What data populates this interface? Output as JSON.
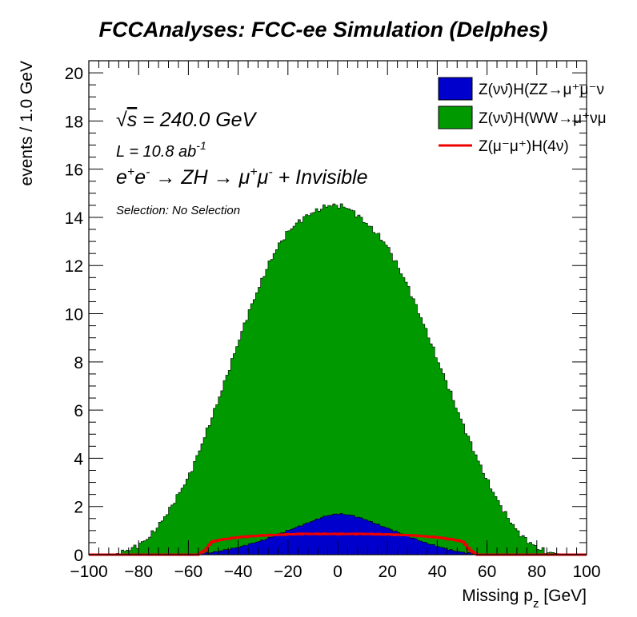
{
  "chart_data": {
    "type": "histogram",
    "title": "FCCAnalyses: FCC-ee Simulation (Delphes)",
    "xlabel": "Missing p_z [GeV]",
    "ylabel": "events / 1.0 GeV",
    "xlim": [
      -100,
      100
    ],
    "ylim": [
      0,
      20.5
    ],
    "xticks": [
      "−100",
      "−80",
      "−60",
      "−40",
      "−20",
      "0",
      "20",
      "40",
      "60",
      "80",
      "100"
    ],
    "yticks": [
      "0",
      "2",
      "4",
      "6",
      "8",
      "10",
      "12",
      "14",
      "16",
      "18",
      "20"
    ],
    "annotations": {
      "energy": "√s = 240.0 GeV",
      "lumi": "L = 10.8 ab",
      "lumi_exp": "-1",
      "process": "e⁺e⁻ → ZH → μ⁺μ⁻ + Invisible",
      "selection": "Selection: No Selection"
    },
    "legend": [
      {
        "label": "Z(νν̄)H(ZZ→μ⁺μ⁻ν",
        "style": "fill",
        "color": "#0000cc"
      },
      {
        "label": "Z(νν̄)H(WW→μ⁺νμ",
        "style": "fill",
        "color": "#009900"
      },
      {
        "label": "Z(μ⁻μ⁺)H(4ν)",
        "style": "line",
        "color": "#ee0000"
      }
    ],
    "series": [
      {
        "name": "Z(νν̄)H(WW→μ⁺νμ",
        "color": "#009900",
        "stacked_total": true,
        "points": [
          [
            -90,
            0.0
          ],
          [
            -87,
            0.1
          ],
          [
            -84,
            0.2
          ],
          [
            -80,
            0.4
          ],
          [
            -76,
            0.7
          ],
          [
            -72,
            1.2
          ],
          [
            -68,
            1.8
          ],
          [
            -64,
            2.5
          ],
          [
            -60,
            3.2
          ],
          [
            -56,
            4.2
          ],
          [
            -52,
            5.3
          ],
          [
            -48,
            6.4
          ],
          [
            -44,
            7.6
          ],
          [
            -40,
            8.8
          ],
          [
            -36,
            10.0
          ],
          [
            -32,
            11.0
          ],
          [
            -28,
            12.0
          ],
          [
            -24,
            12.8
          ],
          [
            -20,
            13.4
          ],
          [
            -16,
            13.8
          ],
          [
            -12,
            14.1
          ],
          [
            -8,
            14.3
          ],
          [
            -4,
            14.5
          ],
          [
            0,
            14.5
          ],
          [
            4,
            14.4
          ],
          [
            8,
            14.1
          ],
          [
            12,
            13.7
          ],
          [
            16,
            13.3
          ],
          [
            20,
            12.8
          ],
          [
            24,
            12.0
          ],
          [
            28,
            11.2
          ],
          [
            32,
            10.2
          ],
          [
            36,
            9.2
          ],
          [
            40,
            8.1
          ],
          [
            44,
            7.1
          ],
          [
            48,
            6.0
          ],
          [
            52,
            5.0
          ],
          [
            56,
            4.0
          ],
          [
            60,
            3.1
          ],
          [
            64,
            2.3
          ],
          [
            68,
            1.6
          ],
          [
            72,
            1.0
          ],
          [
            76,
            0.6
          ],
          [
            80,
            0.3
          ],
          [
            84,
            0.1
          ],
          [
            88,
            0.05
          ],
          [
            92,
            0.0
          ]
        ]
      },
      {
        "name": "Z(νν̄)H(ZZ→μ⁺μ⁻ν",
        "color": "#0000cc",
        "points": [
          [
            -60,
            0.0
          ],
          [
            -55,
            0.05
          ],
          [
            -50,
            0.1
          ],
          [
            -45,
            0.2
          ],
          [
            -40,
            0.3
          ],
          [
            -35,
            0.45
          ],
          [
            -30,
            0.6
          ],
          [
            -25,
            0.8
          ],
          [
            -20,
            1.0
          ],
          [
            -15,
            1.2
          ],
          [
            -10,
            1.4
          ],
          [
            -5,
            1.6
          ],
          [
            0,
            1.7
          ],
          [
            5,
            1.65
          ],
          [
            10,
            1.5
          ],
          [
            15,
            1.3
          ],
          [
            20,
            1.1
          ],
          [
            25,
            0.9
          ],
          [
            30,
            0.7
          ],
          [
            35,
            0.5
          ],
          [
            40,
            0.35
          ],
          [
            45,
            0.2
          ],
          [
            50,
            0.1
          ],
          [
            55,
            0.05
          ],
          [
            60,
            0.0
          ]
        ]
      },
      {
        "name": "Z(μ⁻μ⁺)H(4ν)",
        "color": "#ee0000",
        "points": [
          [
            -100,
            0.0
          ],
          [
            -56,
            0.0
          ],
          [
            -53,
            0.2
          ],
          [
            -51,
            0.5
          ],
          [
            -48,
            0.6
          ],
          [
            -44,
            0.66
          ],
          [
            -40,
            0.72
          ],
          [
            -35,
            0.76
          ],
          [
            -30,
            0.8
          ],
          [
            -25,
            0.82
          ],
          [
            -20,
            0.84
          ],
          [
            -15,
            0.86
          ],
          [
            -10,
            0.86
          ],
          [
            -5,
            0.86
          ],
          [
            0,
            0.86
          ],
          [
            5,
            0.86
          ],
          [
            10,
            0.86
          ],
          [
            15,
            0.85
          ],
          [
            20,
            0.84
          ],
          [
            25,
            0.82
          ],
          [
            30,
            0.8
          ],
          [
            35,
            0.76
          ],
          [
            40,
            0.72
          ],
          [
            44,
            0.66
          ],
          [
            48,
            0.6
          ],
          [
            51,
            0.5
          ],
          [
            53,
            0.2
          ],
          [
            56,
            0.0
          ],
          [
            100,
            0.0
          ]
        ]
      }
    ]
  }
}
